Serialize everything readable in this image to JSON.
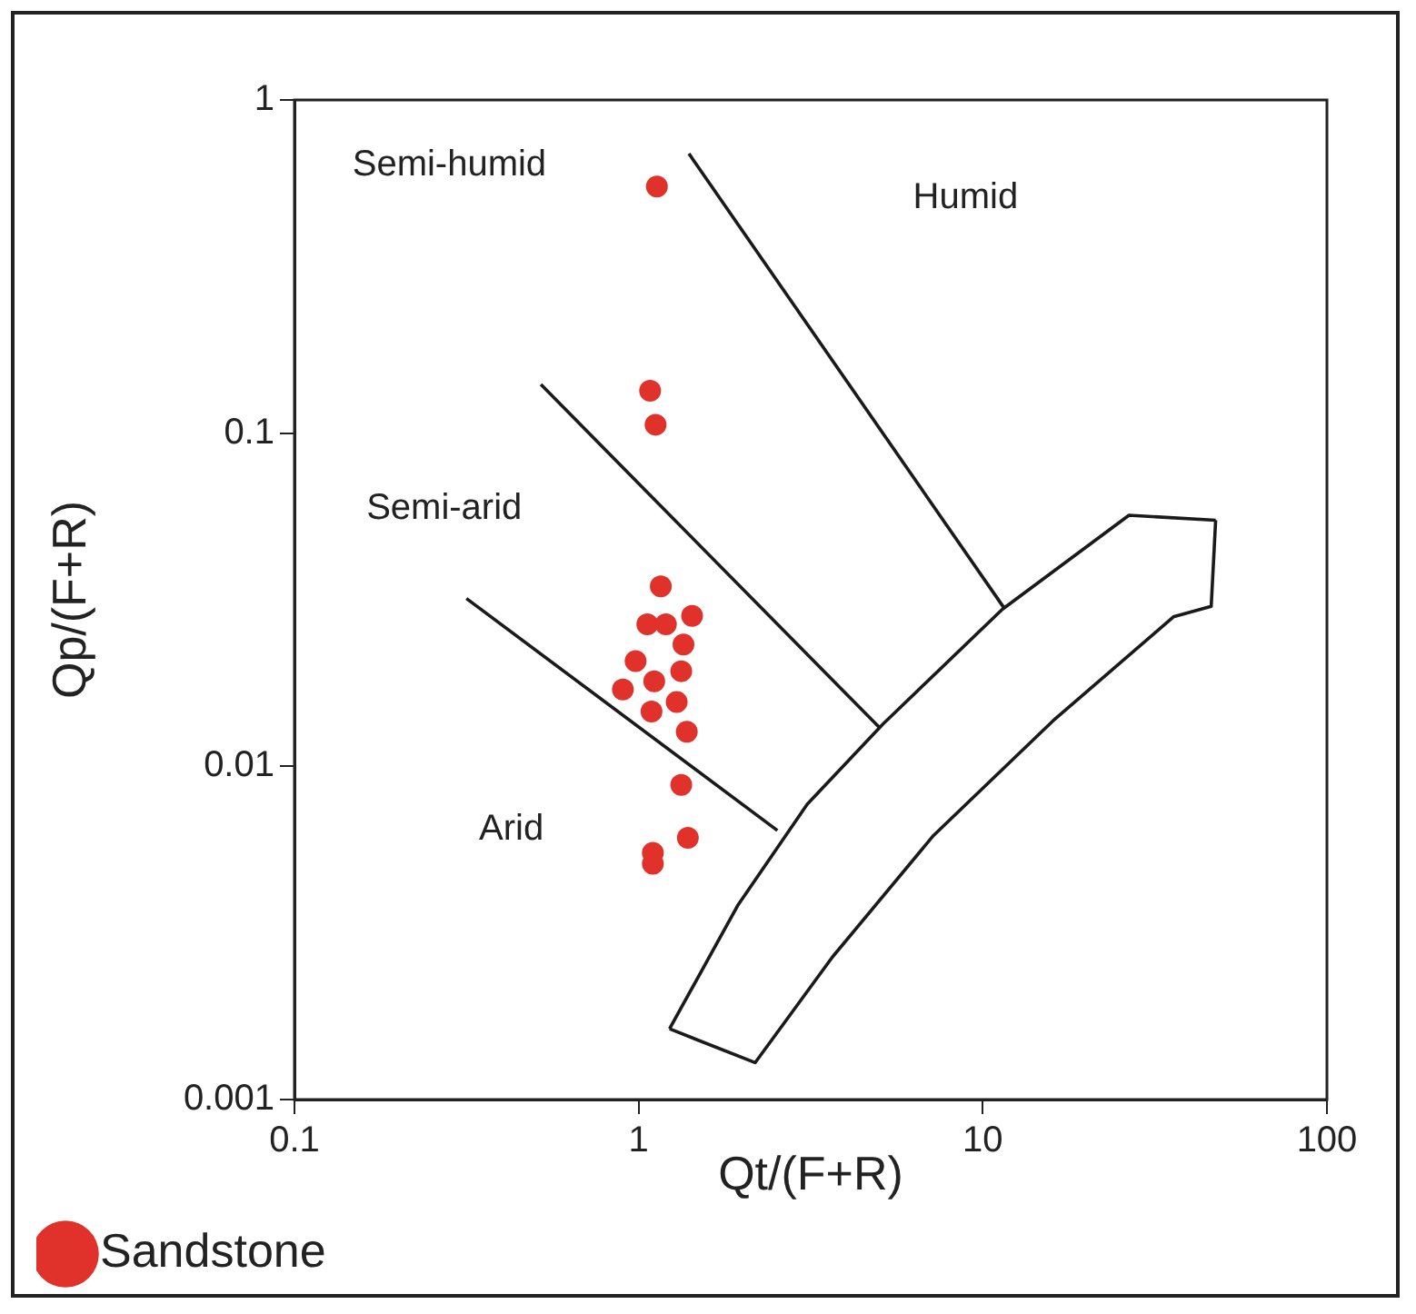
{
  "chart_data": {
    "type": "scatter",
    "xlabel": "Qt/(F+R)",
    "ylabel": "Qp/(F+R)",
    "log": "xy",
    "xlim": [
      0.1,
      100
    ],
    "ylim": [
      0.001,
      1
    ],
    "xticks": [
      0.1,
      1,
      10,
      100
    ],
    "yticks": [
      0.001,
      0.01,
      0.1,
      1
    ],
    "grid": false,
    "legend": "bottom left",
    "series": [
      {
        "name": "Sandstone",
        "color": "#e0312b",
        "type": "scatter",
        "marker": "circle",
        "x": [
          1.13,
          1.08,
          1.12,
          1.16,
          1.06,
          1.2,
          1.43,
          1.35,
          0.98,
          1.33,
          1.11,
          0.9,
          1.09,
          1.29,
          1.38,
          1.33,
          1.39,
          1.1,
          1.1
        ],
        "values": [
          0.55,
          0.134,
          0.106,
          0.0347,
          0.0267,
          0.0267,
          0.0283,
          0.0232,
          0.0207,
          0.0193,
          0.018,
          0.017,
          0.0146,
          0.0156,
          0.0127,
          0.0088,
          0.0061,
          0.0055,
          0.0051
        ]
      },
      {
        "color": "#1a1a1a",
        "type": "line",
        "marker": "none",
        "x": [
          1.4,
          11.5
        ],
        "values": [
          0.69,
          0.03
        ]
      },
      {
        "color": "#1a1a1a",
        "type": "line",
        "marker": "none",
        "x": [
          0.52,
          5.0
        ],
        "values": [
          0.14,
          0.0131
        ]
      },
      {
        "color": "#1a1a1a",
        "type": "line",
        "marker": "none",
        "x": [
          0.316,
          2.53
        ],
        "values": [
          0.0319,
          0.00642
        ]
      },
      {
        "color": "#1a1a1a",
        "type": "line",
        "marker": "none",
        "x": [
          1.23,
          2.18,
          3.66,
          7.19,
          16.0,
          35.8,
          46.1,
          47.5
        ],
        "values": [
          0.00163,
          0.00129,
          0.00268,
          0.0062,
          0.0137,
          0.0281,
          0.0302,
          0.0548
        ]
      },
      {
        "color": "#1a1a1a",
        "type": "line",
        "marker": "none",
        "x": [
          1.23,
          1.94,
          3.09,
          5.13,
          11.4,
          26.6,
          47.5
        ],
        "values": [
          0.00163,
          0.00382,
          0.0077,
          0.0134,
          0.0296,
          0.0567,
          0.0548
        ]
      }
    ],
    "annotations": [
      "Semi-humid",
      "Humid",
      "Semi-arid",
      "Arid"
    ]
  }
}
